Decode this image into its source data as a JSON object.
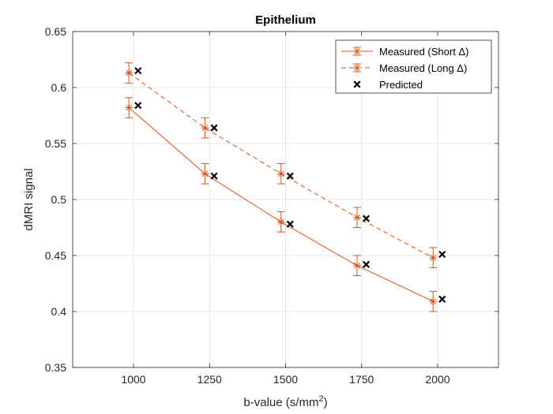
{
  "chart_data": {
    "type": "line",
    "title": "Epithelium",
    "xlabel": "b-value (s/mm",
    "xlabel_sup": "2",
    "xlabel_close": ")",
    "ylabel": "dMRI signal",
    "xlim": [
      800,
      2200
    ],
    "ylim": [
      0.35,
      0.65
    ],
    "xticks": [
      1000,
      1250,
      1500,
      1750,
      2000
    ],
    "xtick_labels": [
      "1000",
      "1250",
      "1500",
      "1750",
      "2000"
    ],
    "yticks": [
      0.35,
      0.4,
      0.45,
      0.5,
      0.55,
      0.6,
      0.65
    ],
    "ytick_labels": [
      "0.35",
      "0.4",
      "0.45",
      "0.5",
      "0.55",
      "0.6",
      "0.65"
    ],
    "grid": true,
    "legend_position": "top-right",
    "series": [
      {
        "name": "Measured (Short Δ)",
        "style": "solid",
        "marker": "asterisk",
        "color": "#D95319",
        "x": [
          985,
          1235,
          1485,
          1735,
          1985
        ],
        "y": [
          0.582,
          0.523,
          0.48,
          0.441,
          0.409
        ],
        "err": [
          0.009,
          0.009,
          0.009,
          0.009,
          0.009
        ]
      },
      {
        "name": "Measured (Long Δ)",
        "style": "dashed",
        "marker": "asterisk",
        "color": "#D95319",
        "x": [
          985,
          1235,
          1485,
          1735,
          1985
        ],
        "y": [
          0.613,
          0.564,
          0.523,
          0.484,
          0.448
        ],
        "err": [
          0.009,
          0.009,
          0.009,
          0.009,
          0.009
        ]
      },
      {
        "name": "Predicted",
        "style": "none",
        "marker": "x",
        "color": "#000000",
        "x": [
          1015,
          1265,
          1515,
          1765,
          2015,
          1015,
          1265,
          1515,
          1765,
          2015
        ],
        "y": [
          0.584,
          0.521,
          0.478,
          0.442,
          0.411,
          0.615,
          0.564,
          0.521,
          0.483,
          0.451
        ]
      }
    ]
  }
}
